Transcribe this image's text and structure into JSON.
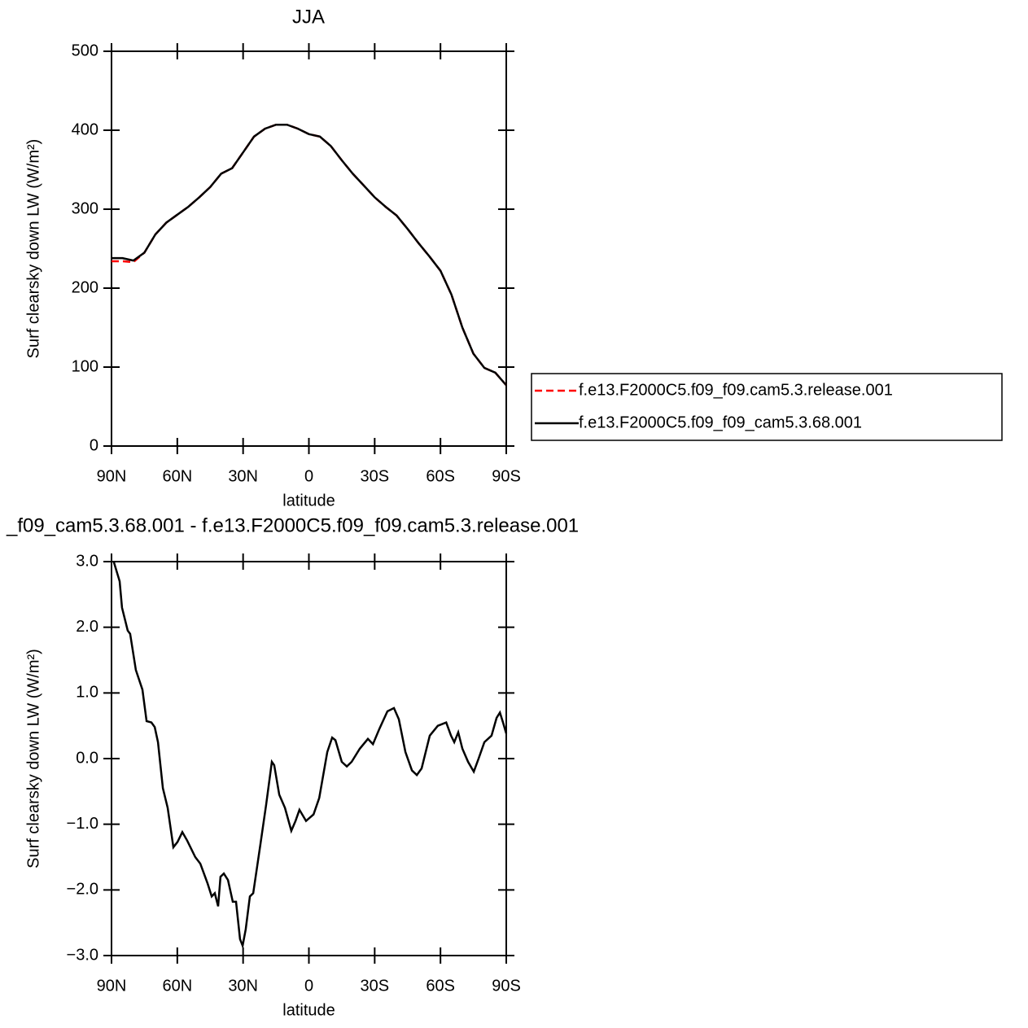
{
  "chart_data": [
    {
      "type": "line",
      "title": "JJA",
      "xlabel": "latitude",
      "ylabel": "Surf clearsky down LW (W/m²)",
      "x": [
        90,
        85,
        80,
        75,
        70,
        65,
        60,
        55,
        50,
        45,
        40,
        35,
        30,
        25,
        20,
        15,
        10,
        5,
        0,
        -5,
        -10,
        -15,
        -20,
        -25,
        -30,
        -35,
        -40,
        -45,
        -50,
        -55,
        -60,
        -65,
        -70,
        -75,
        -80,
        -85,
        -90
      ],
      "series": [
        {
          "name": "f.e13.F2000C5.f09_f09.cam5.3.release.001",
          "color": "#ff0000",
          "dash": "dashed",
          "values": [
            234,
            234,
            233,
            245,
            268,
            283,
            293,
            303,
            315,
            328,
            345,
            352,
            372,
            392,
            402,
            407,
            407,
            402,
            395,
            392,
            380,
            362,
            345,
            330,
            315,
            303,
            292,
            275,
            257,
            240,
            222,
            192,
            150,
            117,
            99,
            93,
            77
          ]
        },
        {
          "name": "f.e13.F2000C5.f09_f09_cam5.3.68.001",
          "color": "#000000",
          "dash": "solid",
          "values": [
            238,
            238,
            235,
            245,
            268,
            283,
            293,
            303,
            315,
            328,
            345,
            352,
            372,
            392,
            402,
            407,
            407,
            402,
            395,
            392,
            380,
            362,
            345,
            330,
            315,
            303,
            292,
            275,
            257,
            240,
            222,
            192,
            150,
            117,
            99,
            93,
            77
          ]
        }
      ],
      "xlim": [
        90,
        -90
      ],
      "xticks": [
        {
          "value": 90,
          "label": "90N"
        },
        {
          "value": 60,
          "label": "60N"
        },
        {
          "value": 30,
          "label": "30N"
        },
        0,
        {
          "value": -30,
          "label": "30S"
        },
        {
          "value": -60,
          "label": "60S"
        },
        {
          "value": -90,
          "label": "90S"
        }
      ],
      "ylim": [
        0,
        500
      ],
      "yticks": [
        0,
        100,
        200,
        300,
        400,
        500
      ],
      "legend": "right"
    },
    {
      "type": "line",
      "title": "_f09_cam5.3.68.001 - f.e13.F2000C5.f09_f09.cam5.3.release.001",
      "xlabel": "latitude",
      "ylabel": "Surf clearsky down LW (W/m²)",
      "x": [
        89,
        86.3,
        85.2,
        82.6,
        81.5,
        78.9,
        75.9,
        74,
        71.8,
        70.3,
        68.8,
        66.6,
        64.4,
        61.8,
        59.9,
        57.7,
        55.5,
        51.8,
        49.5,
        46.2,
        44.3,
        42.9,
        41.4,
        40.3,
        38.8,
        36.9,
        34.7,
        33.2,
        31.4,
        30.2,
        28.8,
        26.9,
        25.4,
        22.1,
        19.5,
        16.9,
        15.8,
        13.5,
        10.9,
        8,
        6.1,
        4.3,
        1.3,
        -2.1,
        -4.7,
        -8.4,
        -10.6,
        -12.1,
        -15,
        -17.3,
        -19.5,
        -23.2,
        -26.9,
        -29.2,
        -32.1,
        -35.8,
        -38.8,
        -41,
        -44,
        -47,
        -49.2,
        -51.4,
        -55.1,
        -58.8,
        -62.6,
        -64.8,
        -66.3,
        -68.1,
        -70,
        -72.6,
        -75.2,
        -77.4,
        -80,
        -83.3,
        -85.6,
        -87.1,
        -88.5,
        -90
      ],
      "series": [
        {
          "name": null,
          "color": "#000000",
          "dash": "solid",
          "values": [
            3.0,
            2.7,
            2.3,
            1.95,
            1.9,
            1.35,
            1.05,
            0.57,
            0.55,
            0.48,
            0.25,
            -0.45,
            -0.75,
            -1.35,
            -1.27,
            -1.12,
            -1.25,
            -1.5,
            -1.6,
            -1.9,
            -2.1,
            -2.05,
            -2.25,
            -1.8,
            -1.75,
            -1.85,
            -2.18,
            -2.18,
            -2.75,
            -2.85,
            -2.6,
            -2.1,
            -2.05,
            -1.3,
            -0.7,
            -0.05,
            -0.1,
            -0.55,
            -0.75,
            -1.1,
            -0.95,
            -0.78,
            -0.95,
            -0.85,
            -0.6,
            0.1,
            0.32,
            0.28,
            -0.05,
            -0.12,
            -0.05,
            0.15,
            0.3,
            0.22,
            0.45,
            0.72,
            0.77,
            0.6,
            0.1,
            -0.18,
            -0.25,
            -0.15,
            0.35,
            0.5,
            0.55,
            0.35,
            0.25,
            0.4,
            0.15,
            -0.05,
            -0.2,
            0.0,
            0.25,
            0.35,
            0.62,
            0.7,
            0.55,
            0.38
          ]
        }
      ],
      "xlim": [
        90,
        -90
      ],
      "xticks": [
        {
          "value": 90,
          "label": "90N"
        },
        {
          "value": 60,
          "label": "60N"
        },
        {
          "value": 30,
          "label": "30N"
        },
        0,
        {
          "value": -30,
          "label": "30S"
        },
        {
          "value": -60,
          "label": "60S"
        },
        {
          "value": -90,
          "label": "90S"
        }
      ],
      "ylim": [
        -3,
        3
      ],
      "yticks": [
        {
          "value": -3,
          "label": "−3.0"
        },
        {
          "value": -2,
          "label": "−2.0"
        },
        {
          "value": -1,
          "label": "−1.0"
        },
        {
          "value": 0,
          "label": "0.0"
        },
        {
          "value": 1,
          "label": "1.0"
        },
        {
          "value": 2,
          "label": "2.0"
        },
        {
          "value": 3,
          "label": "3.0"
        }
      ]
    }
  ]
}
